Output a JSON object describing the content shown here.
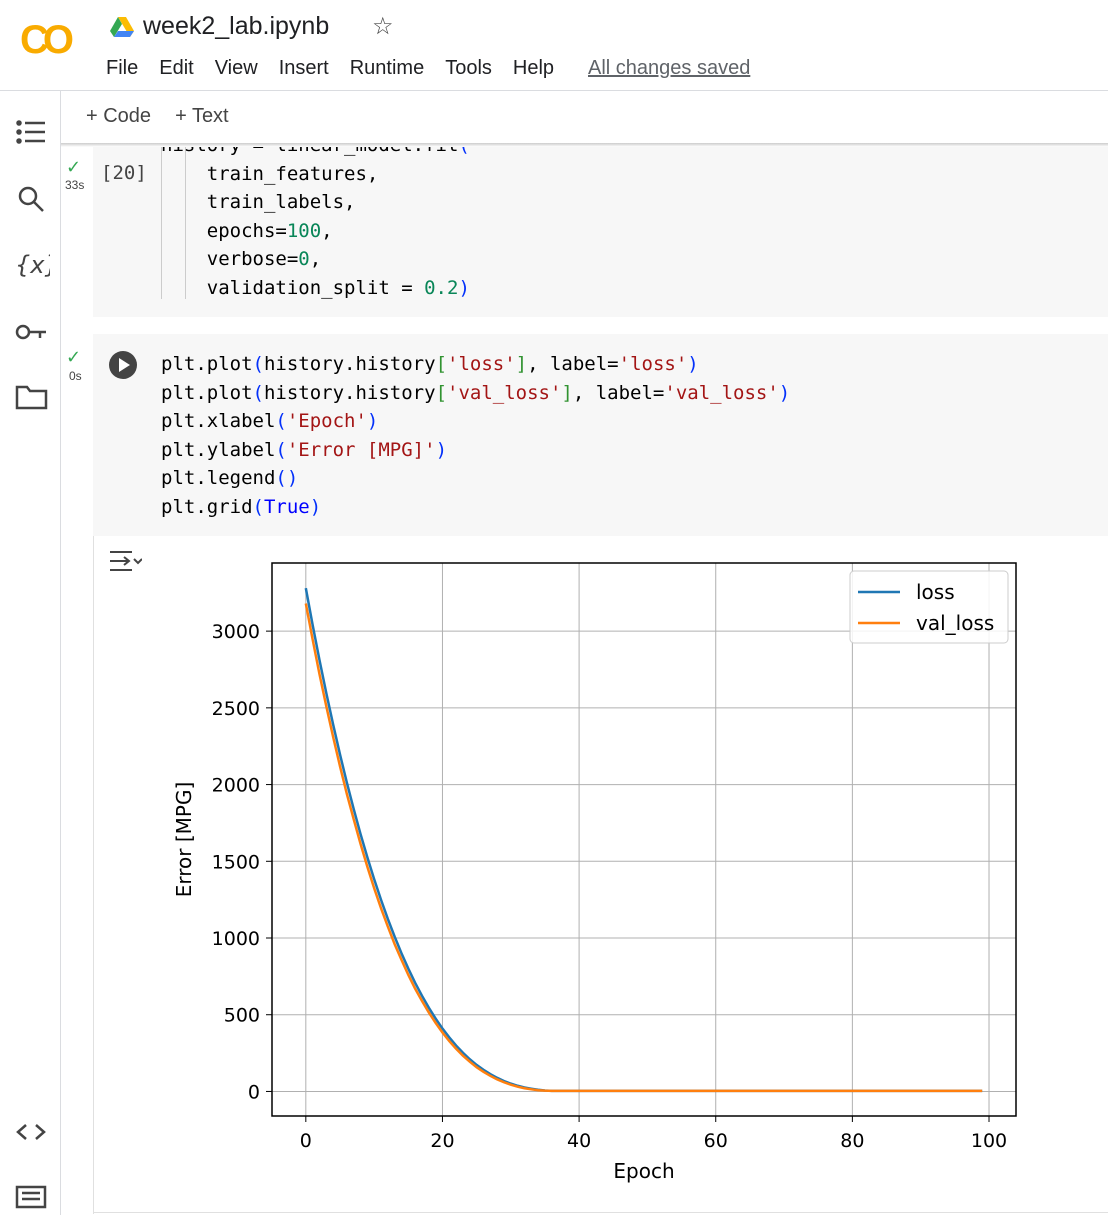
{
  "header": {
    "title": "week2_lab.ipynb",
    "menu": [
      "File",
      "Edit",
      "View",
      "Insert",
      "Runtime",
      "Tools",
      "Help"
    ],
    "status": "All changes saved"
  },
  "toolbar": [
    "+ Code",
    "+ Text"
  ],
  "cells": [
    {
      "count": "[20]",
      "time": "33s",
      "lines": [
        "history = linear_model.fit(",
        "    train_features,",
        "    train_labels,",
        "    epochs=100,",
        "    verbose=0,",
        "    validation_split = 0.2)"
      ]
    },
    {
      "time": "0s",
      "lines": [
        "plt.plot(history.history['loss'], label='loss')",
        "plt.plot(history.history['val_loss'], label='val_loss')",
        "plt.xlabel('Epoch')",
        "plt.ylabel('Error [MPG]')",
        "plt.legend()",
        "plt.grid(True)"
      ]
    }
  ],
  "chart_data": {
    "type": "line",
    "xlabel": "Epoch",
    "ylabel": "Error [MPG]",
    "x": [
      0,
      1,
      2,
      3,
      4,
      5,
      6,
      7,
      8,
      9,
      10,
      11,
      12,
      13,
      14,
      15,
      16,
      17,
      18,
      19,
      20,
      21,
      22,
      23,
      24,
      25,
      26,
      27,
      28,
      29,
      30,
      31,
      32,
      33,
      34,
      35,
      36,
      37,
      38,
      39,
      40,
      41,
      42,
      43,
      44,
      45,
      46,
      47,
      48,
      49,
      50,
      51,
      52,
      53,
      54,
      55,
      56,
      57,
      58,
      59,
      60,
      61,
      62,
      63,
      64,
      65,
      66,
      67,
      68,
      69,
      70,
      71,
      72,
      73,
      74,
      75,
      76,
      77,
      78,
      79,
      80,
      81,
      82,
      83,
      84,
      85,
      86,
      87,
      88,
      89,
      90,
      91,
      92,
      93,
      94,
      95,
      96,
      97,
      98,
      99
    ],
    "series": [
      {
        "name": "loss",
        "color": "#1f77b4",
        "values": [
          3280,
          3040,
          2812,
          2596,
          2391,
          2197,
          2014,
          1842,
          1679,
          1527,
          1384,
          1250,
          1125,
          1009,
          901,
          801,
          708,
          624,
          546,
          475,
          410,
          352,
          299,
          252,
          210,
          173,
          141,
          113,
          89,
          68,
          51,
          37,
          26,
          18,
          11,
          6,
          4,
          4,
          4,
          4,
          4,
          4,
          4,
          4,
          4,
          4,
          4,
          4,
          4,
          4,
          4,
          4,
          4,
          4,
          4,
          4,
          4,
          4,
          4,
          4,
          4,
          4,
          4,
          4,
          4,
          4,
          4,
          4,
          4,
          4,
          4,
          4,
          4,
          4,
          4,
          4,
          4,
          4,
          4,
          4,
          4,
          4,
          4,
          4,
          4,
          4,
          4,
          4,
          4,
          4,
          4,
          4,
          4,
          4,
          4,
          4,
          4,
          4,
          4,
          4
        ]
      },
      {
        "name": "val_loss",
        "color": "#ff7f0e",
        "values": [
          3180,
          2945,
          2720,
          2510,
          2310,
          2120,
          1940,
          1775,
          1615,
          1465,
          1325,
          1195,
          1075,
          960,
          858,
          760,
          670,
          590,
          515,
          447,
          384,
          328,
          278,
          233,
          194,
          158,
          128,
          102,
          79,
          60,
          44,
          31,
          21,
          14,
          8,
          5,
          4,
          4,
          4,
          4,
          4,
          4,
          4,
          4,
          4,
          4,
          4,
          4,
          4,
          4,
          4,
          4,
          4,
          4,
          4,
          4,
          4,
          4,
          4,
          4,
          4,
          4,
          4,
          4,
          4,
          4,
          4,
          4,
          4,
          4,
          4,
          4,
          4,
          4,
          4,
          4,
          4,
          4,
          4,
          4,
          4,
          4,
          4,
          4,
          4,
          4,
          4,
          4,
          4,
          4,
          4,
          4,
          4,
          4,
          4,
          4,
          4,
          4,
          4,
          4
        ]
      }
    ],
    "xlim": [
      -4.95,
      103.95
    ],
    "xticks": [
      0,
      20,
      40,
      60,
      80,
      100
    ],
    "ylim": [
      -160,
      3444
    ],
    "yticks": [
      0,
      500,
      1000,
      1500,
      2000,
      2500,
      3000
    ],
    "grid": true,
    "legend": "upper right"
  }
}
